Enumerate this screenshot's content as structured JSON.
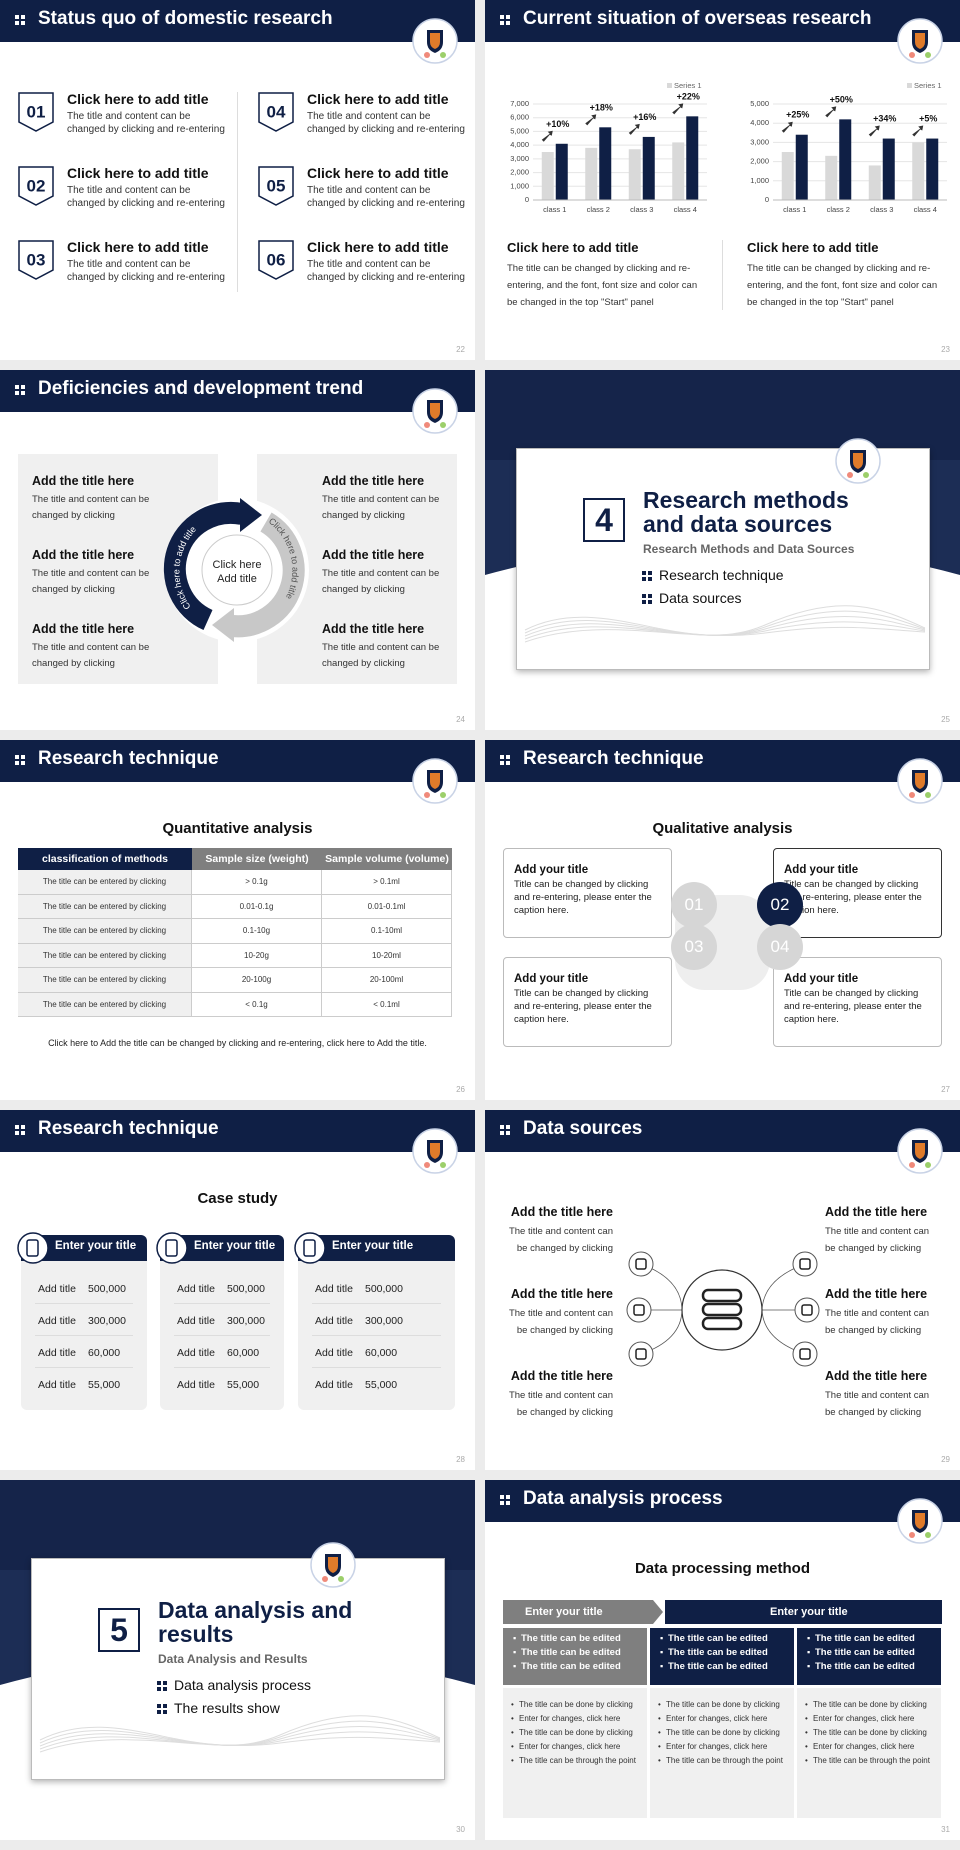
{
  "slides": [
    {
      "title": "Status quo of domestic research",
      "page": "22",
      "items": [
        {
          "num": "01",
          "title": "Click here to add title",
          "text": "The title and content can be changed by clicking and re-entering"
        },
        {
          "num": "02",
          "title": "Click here to add title",
          "text": "The title and content can be changed by clicking and re-entering"
        },
        {
          "num": "03",
          "title": "Click here to add title",
          "text": "The title and content can be changed by clicking and re-entering"
        },
        {
          "num": "04",
          "title": "Click here to add title",
          "text": "The title and content can be changed by clicking and re-entering"
        },
        {
          "num": "05",
          "title": "Click here to add title",
          "text": "The title and content can be changed by clicking and re-entering"
        },
        {
          "num": "06",
          "title": "Click here to add title",
          "text": "The title and content can be changed by clicking and re-entering"
        }
      ]
    },
    {
      "title": "Current situation of overseas research",
      "page": "23",
      "charts": [
        {
          "type": "bar",
          "categories": [
            "class 1",
            "class 2",
            "class 3",
            "class 4"
          ],
          "series": [
            {
              "name": "Series 1",
              "color": "#d9d9d9",
              "values": [
                3500,
                3800,
                3700,
                4200
              ]
            },
            {
              "color": "#0f1f45",
              "values": [
                4100,
                5300,
                4600,
                6100
              ]
            }
          ],
          "annotations": [
            "+10%",
            "+18%",
            "+16%",
            "+22%"
          ],
          "ylim": [
            0,
            7000
          ],
          "yticks": [
            0,
            {
              "value": 1000,
              "label": "1,000"
            },
            {
              "value": 2000,
              "label": "2,000"
            },
            {
              "value": 3000,
              "label": "3,000"
            },
            {
              "value": 4000,
              "label": "4,000"
            },
            {
              "value": 5000,
              "label": "5,000"
            },
            {
              "value": 6000,
              "label": "6,000"
            },
            {
              "value": 7000,
              "label": "7,000"
            }
          ],
          "grid": true
        },
        {
          "type": "bar",
          "categories": [
            "class 1",
            "class 2",
            "class 3",
            "class 4"
          ],
          "series": [
            {
              "name": "Series 1",
              "color": "#d9d9d9",
              "values": [
                2500,
                2300,
                1800,
                3000
              ]
            },
            {
              "color": "#0f1f45",
              "values": [
                3400,
                4200,
                3200,
                3200
              ]
            }
          ],
          "annotations": [
            "+25%",
            "+50%",
            "+34%",
            "+5%"
          ],
          "ylim": [
            0,
            5000
          ],
          "yticks": [
            0,
            {
              "value": 1000,
              "label": "1,000"
            },
            {
              "value": 2000,
              "label": "2,000"
            },
            {
              "value": 3000,
              "label": "3,000"
            },
            {
              "value": 4000,
              "label": "4,000"
            },
            {
              "value": 5000,
              "label": "5,000"
            }
          ],
          "grid": true
        }
      ],
      "captions": [
        {
          "title": "Click here to add title",
          "text": "The title can be changed by clicking and re-entering, and the font, font size and color can be changed in the top \"Start\" panel"
        },
        {
          "title": "Click here to add title",
          "text": "The title can be changed by clicking and re-entering, and the font, font size and color can be changed in the top \"Start\" panel"
        }
      ]
    },
    {
      "title": "Deficiencies and development trend",
      "page": "24",
      "center": [
        "Click here",
        "Add title"
      ],
      "arc": [
        "Click here to add title",
        "Click here to add title"
      ],
      "items": [
        {
          "title": "Add the title here",
          "text": "The title and content can be changed by clicking"
        },
        {
          "title": "Add the title here",
          "text": "The title and content can be changed by clicking"
        },
        {
          "title": "Add the title here",
          "text": "The title and content can be changed by clicking"
        },
        {
          "title": "Add the title here",
          "text": "The title and content can be changed by clicking"
        },
        {
          "title": "Add the title here",
          "text": "The title and content can be changed by clicking"
        },
        {
          "title": "Add the title here",
          "text": "The title and content can be changed by clicking"
        }
      ]
    },
    {
      "page": "25",
      "number": "4",
      "title": "Research methods and data sources",
      "subtitle": "Research Methods and Data Sources",
      "bullets": [
        "Research technique",
        "Data sources"
      ]
    },
    {
      "title": "Research technique",
      "page": "26",
      "heading": "Quantitative analysis",
      "table": {
        "header": [
          "classification of methods",
          "Sample size (weight)",
          "Sample volume (volume)"
        ],
        "rows": [
          [
            "The title can be entered by clicking",
            "> 0.1g",
            "> 0.1ml"
          ],
          [
            "The title can be entered by clicking",
            "0.01-0.1g",
            "0.01-0.1ml"
          ],
          [
            "The title can be entered by clicking",
            "0.1-10g",
            "0.1-10ml"
          ],
          [
            "The title can be entered by clicking",
            "10-20g",
            "10-20ml"
          ],
          [
            "The title can be entered by clicking",
            "20-100g",
            "20-100ml"
          ],
          [
            "The title can be entered by clicking",
            "< 0.1g",
            "< 0.1ml"
          ]
        ]
      },
      "note": "Click here to Add the title can be changed by clicking and re-entering, click here to Add the title."
    },
    {
      "title": "Research technique",
      "page": "27",
      "heading": "Qualitative analysis",
      "boxes": [
        {
          "num": "01",
          "title": "Add your title",
          "text": "Title can be changed by clicking and re-entering, please enter the caption here."
        },
        {
          "num": "02",
          "title": "Add your title",
          "text": "Title can be changed by clicking and re-entering, please enter the caption here."
        },
        {
          "num": "03",
          "title": "Add your title",
          "text": "Title can be changed by clicking and re-entering, please enter the caption here."
        },
        {
          "num": "04",
          "title": "Add your title",
          "text": "Title can be changed by clicking and re-entering, please enter the caption here."
        }
      ]
    },
    {
      "title": "Research technique",
      "page": "28",
      "heading": "Case study",
      "cards": [
        {
          "title": "Enter your title",
          "rows": [
            [
              "Add title",
              "500,000"
            ],
            [
              "Add title",
              "300,000"
            ],
            [
              "Add title",
              "60,000"
            ],
            [
              "Add title",
              "55,000"
            ]
          ]
        },
        {
          "title": "Enter your title",
          "rows": [
            [
              "Add title",
              "500,000"
            ],
            [
              "Add title",
              "300,000"
            ],
            [
              "Add title",
              "60,000"
            ],
            [
              "Add title",
              "55,000"
            ]
          ]
        },
        {
          "title": "Enter your title",
          "rows": [
            [
              "Add title",
              "500,000"
            ],
            [
              "Add title",
              "300,000"
            ],
            [
              "Add title",
              "60,000"
            ],
            [
              "Add title",
              "55,000"
            ]
          ]
        }
      ]
    },
    {
      "title": "Data sources",
      "page": "29",
      "items": [
        {
          "title": "Add the title here",
          "text": "The title and content can be changed by clicking"
        },
        {
          "title": "Add the title here",
          "text": "The title and content can be changed by clicking"
        },
        {
          "title": "Add the title here",
          "text": "The title and content can be changed by clicking"
        },
        {
          "title": "Add the title here",
          "text": "The title and content can be changed by clicking"
        },
        {
          "title": "Add the title here",
          "text": "The title and content can be changed by clicking"
        },
        {
          "title": "Add the title here",
          "text": "The title and content can be changed by clicking"
        }
      ]
    },
    {
      "page": "30",
      "number": "5",
      "title": "Data analysis and results",
      "subtitle": "Data Analysis and Results",
      "bullets": [
        "Data analysis process",
        "The results show"
      ]
    },
    {
      "title": "Data analysis process",
      "page": "31",
      "heading": "Data processing method",
      "tabs": [
        "Enter your title",
        "Enter your title"
      ],
      "columns": [
        {
          "head": [
            "The title can be edited",
            "The title can be edited",
            "The title can be edited"
          ],
          "list": [
            "The title can be done by clicking",
            "Enter for changes, click here",
            "The title can be done by clicking",
            "Enter for changes, click here",
            "The title can be through the point"
          ]
        },
        {
          "head": [
            "The title can be edited",
            "The title can be edited",
            "The title can be edited"
          ],
          "list": [
            "The title can be done by clicking",
            "Enter for changes, click here",
            "The title can be done by clicking",
            "Enter for changes, click here",
            "The title can be through the point"
          ]
        },
        {
          "head": [
            "The title can be edited",
            "The title can be edited",
            "The title can be edited"
          ],
          "list": [
            "The title can be done by clicking",
            "Enter for changes, click here",
            "The title can be done by clicking",
            "Enter for changes, click here",
            "The title can be through the point"
          ]
        }
      ]
    }
  ]
}
